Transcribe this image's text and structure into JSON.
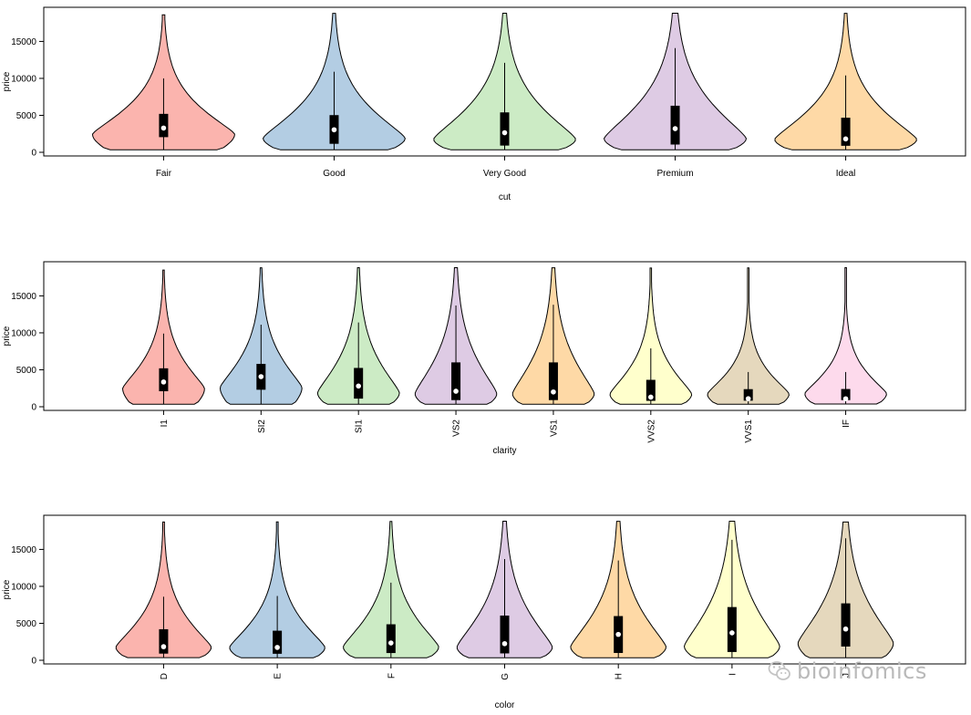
{
  "chart_data": [
    {
      "type": "violin",
      "xlabel": "cut",
      "ylabel": "price",
      "ylim": [
        0,
        19000
      ],
      "yticks": [
        0,
        5000,
        10000,
        15000
      ],
      "label_rotation": "horizontal",
      "categories": [
        "Fair",
        "Good",
        "Very Good",
        "Premium",
        "Ideal"
      ],
      "colors": [
        "#FBB4AE",
        "#B3CDE3",
        "#CCEBC5",
        "#DECBE4",
        "#FED9A6"
      ],
      "stats": [
        {
          "min": 340,
          "q1": 2050,
          "median": 3280,
          "q3": 5200,
          "whisker_hi": 10000,
          "max": 18600
        },
        {
          "min": 330,
          "q1": 1150,
          "median": 3050,
          "q3": 5030,
          "whisker_hi": 10900,
          "max": 18800
        },
        {
          "min": 330,
          "q1": 910,
          "median": 2650,
          "q3": 5400,
          "whisker_hi": 12100,
          "max": 18820
        },
        {
          "min": 330,
          "q1": 1050,
          "median": 3200,
          "q3": 6300,
          "whisker_hi": 14100,
          "max": 18820
        },
        {
          "min": 330,
          "q1": 880,
          "median": 1810,
          "q3": 4680,
          "whisker_hi": 10400,
          "max": 18800
        }
      ]
    },
    {
      "type": "violin",
      "xlabel": "clarity",
      "ylabel": "price",
      "ylim": [
        0,
        19000
      ],
      "yticks": [
        0,
        5000,
        10000,
        15000
      ],
      "label_rotation": "vertical",
      "categories": [
        "I1",
        "SI2",
        "SI1",
        "VS2",
        "VS1",
        "VVS2",
        "VVS1",
        "IF"
      ],
      "colors": [
        "#FBB4AE",
        "#B3CDE3",
        "#CCEBC5",
        "#DECBE4",
        "#FED9A6",
        "#FFFFCC",
        "#E5D8BD",
        "#FDDAEC"
      ],
      "stats": [
        {
          "min": 350,
          "q1": 2100,
          "median": 3350,
          "q3": 5200,
          "whisker_hi": 9900,
          "max": 18500
        },
        {
          "min": 330,
          "q1": 2300,
          "median": 4070,
          "q3": 5800,
          "whisker_hi": 11100,
          "max": 18800
        },
        {
          "min": 330,
          "q1": 1100,
          "median": 2800,
          "q3": 5250,
          "whisker_hi": 11400,
          "max": 18820
        },
        {
          "min": 330,
          "q1": 900,
          "median": 2100,
          "q3": 6000,
          "whisker_hi": 13700,
          "max": 18820
        },
        {
          "min": 330,
          "q1": 900,
          "median": 2000,
          "q3": 6000,
          "whisker_hi": 13800,
          "max": 18800
        },
        {
          "min": 340,
          "q1": 800,
          "median": 1300,
          "q3": 3640,
          "whisker_hi": 7900,
          "max": 18770
        },
        {
          "min": 340,
          "q1": 820,
          "median": 1090,
          "q3": 2380,
          "whisker_hi": 4700,
          "max": 18780
        },
        {
          "min": 370,
          "q1": 900,
          "median": 1080,
          "q3": 2400,
          "whisker_hi": 4700,
          "max": 18810
        }
      ]
    },
    {
      "type": "violin",
      "xlabel": "color",
      "ylabel": "price",
      "ylim": [
        0,
        19000
      ],
      "yticks": [
        0,
        5000,
        10000,
        15000
      ],
      "label_rotation": "vertical",
      "categories": [
        "D",
        "E",
        "F",
        "G",
        "H",
        "I",
        "J"
      ],
      "colors": [
        "#FBB4AE",
        "#B3CDE3",
        "#CCEBC5",
        "#DECBE4",
        "#FED9A6",
        "#FFFFCC",
        "#E5D8BD"
      ],
      "stats": [
        {
          "min": 360,
          "q1": 900,
          "median": 1840,
          "q3": 4200,
          "whisker_hi": 8600,
          "max": 18700
        },
        {
          "min": 330,
          "q1": 880,
          "median": 1740,
          "q3": 4000,
          "whisker_hi": 8700,
          "max": 18730
        },
        {
          "min": 340,
          "q1": 980,
          "median": 2340,
          "q3": 4870,
          "whisker_hi": 10500,
          "max": 18790
        },
        {
          "min": 350,
          "q1": 930,
          "median": 2250,
          "q3": 6050,
          "whisker_hi": 13700,
          "max": 18820
        },
        {
          "min": 340,
          "q1": 990,
          "median": 3500,
          "q3": 5980,
          "whisker_hi": 13500,
          "max": 18800
        },
        {
          "min": 330,
          "q1": 1120,
          "median": 3710,
          "q3": 7200,
          "whisker_hi": 16300,
          "max": 18820
        },
        {
          "min": 330,
          "q1": 1860,
          "median": 4230,
          "q3": 7700,
          "whisker_hi": 16500,
          "max": 18700
        }
      ]
    }
  ],
  "watermark": {
    "text": "bioinfomics",
    "icon": "wechat-icon"
  }
}
